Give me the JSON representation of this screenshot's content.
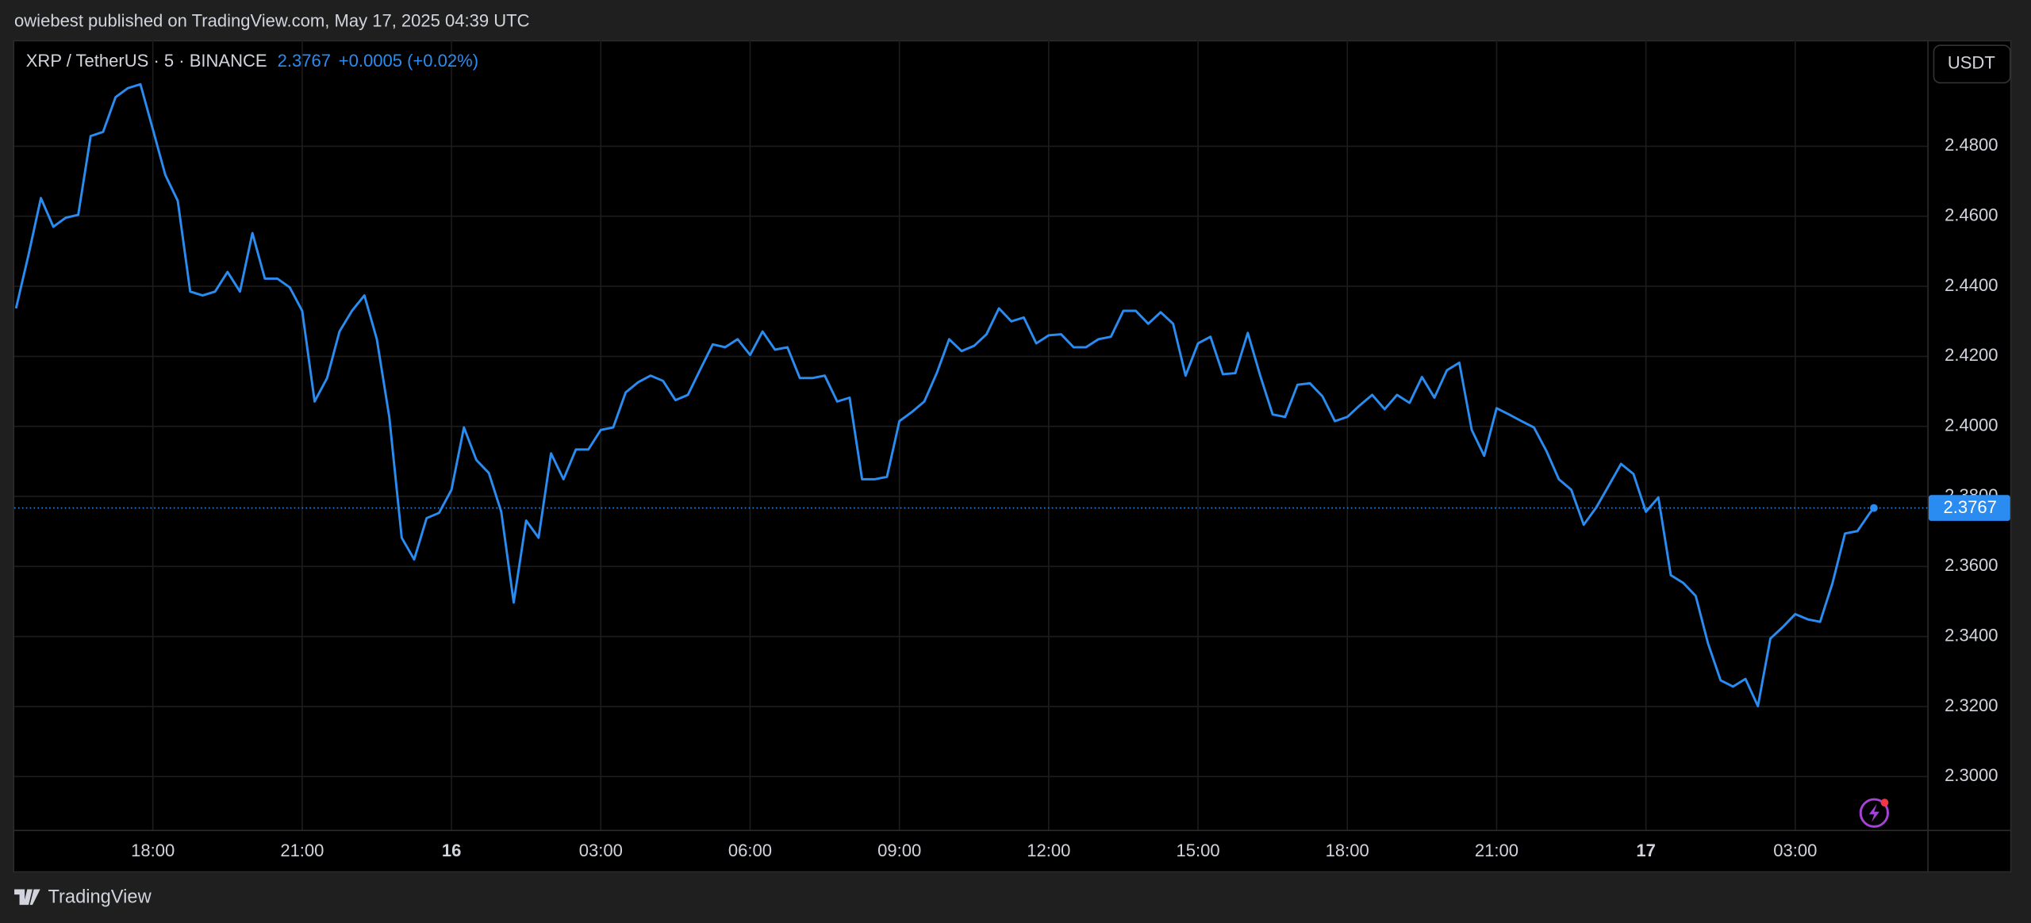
{
  "chart_data": {
    "type": "line",
    "byline": "owiebest published on TradingView.com, May 17, 2025 04:39 UTC",
    "symbol": "XRP / TetherUS · 5 · BINANCE",
    "last_price": 2.3767,
    "change": "+0.0005 (+0.02%)",
    "currency": "USDT",
    "brand": "TradingView",
    "color": "#2a8cf0",
    "grid": true,
    "x": [
      15.25,
      15.5,
      15.75,
      16,
      16.25,
      16.5,
      16.75,
      17,
      17.25,
      17.5,
      17.75,
      18,
      18.25,
      18.5,
      18.75,
      19,
      19.25,
      19.5,
      19.75,
      20,
      20.25,
      20.5,
      20.75,
      21,
      21.25,
      21.5,
      21.75,
      22,
      22.25,
      22.5,
      22.75,
      23,
      23.25,
      23.5,
      23.75,
      24,
      24.25,
      24.5,
      24.75,
      25,
      25.25,
      25.5,
      25.75,
      26,
      26.25,
      26.5,
      26.75,
      27,
      27.25,
      27.5,
      27.75,
      28,
      28.25,
      28.5,
      28.75,
      29,
      29.25,
      29.5,
      29.75,
      30,
      30.25,
      30.5,
      30.75,
      31,
      31.25,
      31.5,
      31.75,
      32,
      32.25,
      32.5,
      32.75,
      33,
      33.25,
      33.5,
      33.75,
      34,
      34.25,
      34.5,
      34.75,
      35,
      35.25,
      35.5,
      35.75,
      36,
      36.25,
      36.5,
      36.75,
      37,
      37.25,
      37.5,
      37.75,
      38,
      38.25,
      38.5,
      38.75,
      39,
      39.25,
      39.5,
      39.75,
      40,
      40.25,
      40.5,
      40.75,
      41,
      41.25,
      41.5,
      41.75,
      42,
      42.25,
      42.5,
      42.75,
      43,
      43.25,
      43.5,
      43.75,
      44,
      44.25,
      44.5,
      44.75,
      45,
      45.25,
      45.5,
      45.75,
      46,
      46.25,
      46.5,
      46.75,
      47,
      47.25,
      47.5,
      47.75,
      48,
      48.25,
      48.5,
      48.75,
      49,
      49.25,
      49.5,
      49.75,
      50,
      50.25,
      50.5,
      50.75,
      51,
      51.25,
      51.5,
      51.75,
      52,
      52.25,
      52.5,
      52.58
    ],
    "values": [
      2.4337,
      2.4489,
      2.4652,
      2.457,
      2.4596,
      2.4604,
      2.4829,
      2.4841,
      2.494,
      2.4966,
      2.4977,
      2.4848,
      2.4718,
      2.4644,
      2.4385,
      2.4374,
      2.4385,
      2.4441,
      2.4385,
      2.4552,
      2.4422,
      2.4422,
      2.4397,
      2.433,
      2.4071,
      2.4138,
      2.4271,
      2.433,
      2.4374,
      2.4249,
      2.4027,
      2.3682,
      2.362,
      2.3738,
      2.3753,
      2.3819,
      2.3997,
      2.3904,
      2.3867,
      2.3756,
      2.3497,
      2.3731,
      2.3682,
      2.3923,
      2.3849,
      2.3934,
      2.3934,
      2.399,
      2.3997,
      2.4097,
      2.4126,
      2.4145,
      2.413,
      2.4075,
      2.409,
      2.4163,
      2.4234,
      2.4226,
      2.4249,
      2.4204,
      2.4271,
      2.4219,
      2.4226,
      2.4138,
      2.4138,
      2.4145,
      2.4071,
      2.4082,
      2.3849,
      2.3849,
      2.3856,
      2.4015,
      2.4041,
      2.4071,
      2.4152,
      2.4249,
      2.4215,
      2.423,
      2.4263,
      2.4337,
      2.43,
      2.4311,
      2.4237,
      2.426,
      2.4263,
      2.4226,
      2.4226,
      2.4249,
      2.4256,
      2.433,
      2.433,
      2.4293,
      2.4326,
      2.4293,
      2.4145,
      2.4237,
      2.4256,
      2.4149,
      2.4152,
      2.4267,
      2.4145,
      2.4034,
      2.4027,
      2.4119,
      2.4123,
      2.4086,
      2.4015,
      2.4027,
      2.406,
      2.409,
      2.4049,
      2.409,
      2.4067,
      2.4141,
      2.4082,
      2.416,
      2.4182,
      2.399,
      2.3916,
      2.4052,
      2.4034,
      2.4015,
      2.3997,
      2.393,
      2.3849,
      2.3819,
      2.3719,
      2.3768,
      2.383,
      2.3893,
      2.3864,
      2.3756,
      2.3797,
      2.3575,
      2.3553,
      2.3516,
      2.3379,
      2.3275,
      2.3257,
      2.3279,
      2.3201,
      2.3394,
      2.3427,
      2.3464,
      2.3449,
      2.3442,
      2.3553,
      2.3694,
      2.3701,
      2.3753,
      2.3767
    ],
    "xlim": [
      15.216,
      53.654
    ],
    "xticks": [
      {
        "value": 18,
        "label": "18:00"
      },
      {
        "value": 21,
        "label": "21:00"
      },
      {
        "value": 24,
        "label": "16"
      },
      {
        "value": 27,
        "label": "03:00"
      },
      {
        "value": 30,
        "label": "06:00"
      },
      {
        "value": 33,
        "label": "09:00"
      },
      {
        "value": 36,
        "label": "12:00"
      },
      {
        "value": 39,
        "label": "15:00"
      },
      {
        "value": 42,
        "label": "18:00"
      },
      {
        "value": 45,
        "label": "21:00"
      },
      {
        "value": 48,
        "label": "17"
      },
      {
        "value": 51,
        "label": "03:00"
      }
    ],
    "ylim": [
      2.2848,
      2.5103
    ],
    "yticks": [
      {
        "value": 2.3,
        "label": "2.3000"
      },
      {
        "value": 2.32,
        "label": "2.3200"
      },
      {
        "value": 2.34,
        "label": "2.3400"
      },
      {
        "value": 2.36,
        "label": "2.3600"
      },
      {
        "value": 2.38,
        "label": "2.3800"
      },
      {
        "value": 2.4,
        "label": "2.4000"
      },
      {
        "value": 2.42,
        "label": "2.4200"
      },
      {
        "value": 2.44,
        "label": "2.4400"
      },
      {
        "value": 2.46,
        "label": "2.4600"
      },
      {
        "value": 2.48,
        "label": "2.4800"
      }
    ]
  }
}
